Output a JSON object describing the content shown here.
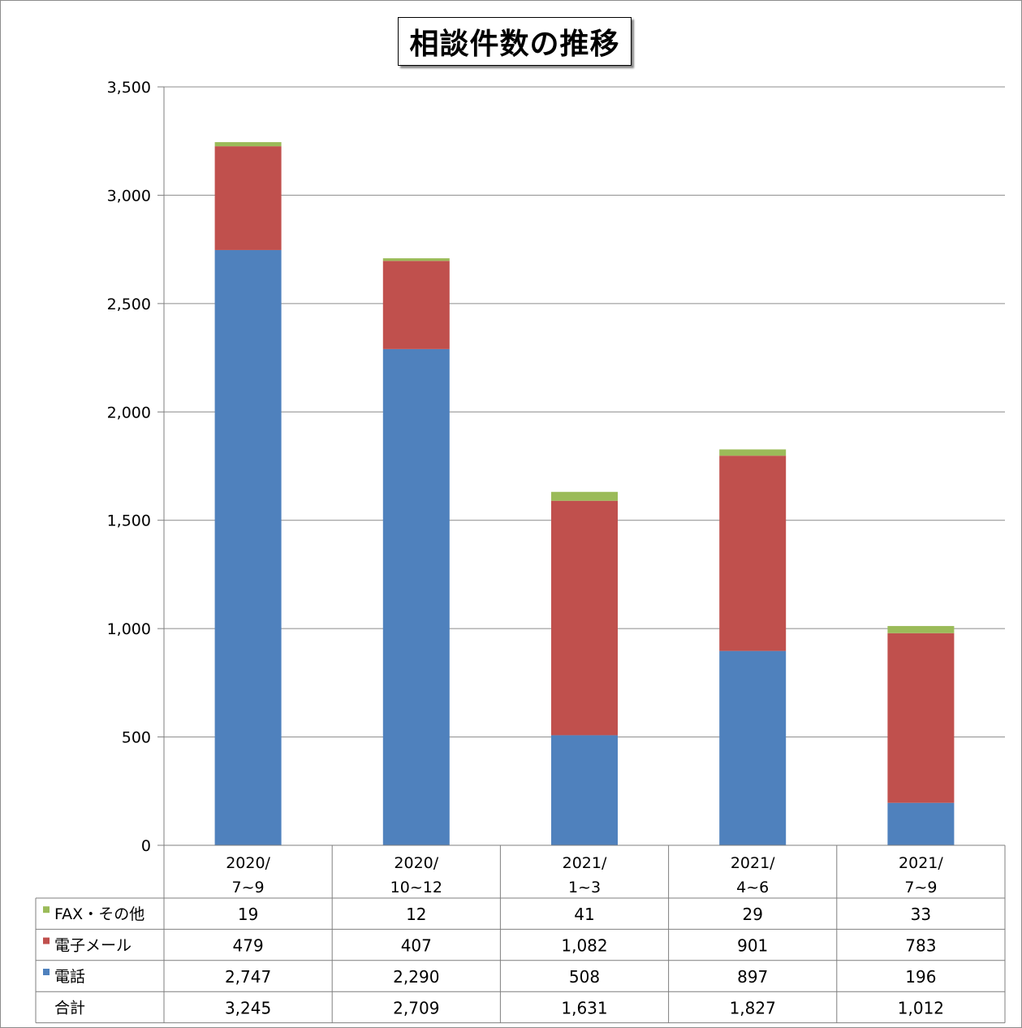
{
  "chart_data": {
    "type": "bar",
    "stacked": true,
    "title": "相談件数の推移",
    "categories": [
      [
        "2020/",
        "7~9"
      ],
      [
        "2020/",
        "10~12"
      ],
      [
        "2021/",
        "1~3"
      ],
      [
        "2021/",
        "4~6"
      ],
      [
        "2021/",
        "7~9"
      ]
    ],
    "series": [
      {
        "name": "電話",
        "color": "#4f81bd",
        "values": [
          2747,
          2290,
          508,
          897,
          196
        ]
      },
      {
        "name": "電子メール",
        "color": "#c0504d",
        "values": [
          479,
          407,
          1082,
          901,
          783
        ]
      },
      {
        "name": "FAX・その他",
        "color": "#9bbb59",
        "values": [
          19,
          12,
          41,
          29,
          33
        ]
      }
    ],
    "ylim": [
      0,
      3500
    ],
    "yticks": [
      "0",
      "500",
      "1,000",
      "1,500",
      "2,000",
      "2,500",
      "3,000",
      "3,500"
    ],
    "grid": true,
    "data_table": {
      "rows": [
        {
          "label": "FAX・その他",
          "color": "#9bbb59",
          "values": [
            "19",
            "12",
            "41",
            "29",
            "33"
          ]
        },
        {
          "label": "電子メール",
          "color": "#c0504d",
          "values": [
            "479",
            "407",
            "1,082",
            "901",
            "783"
          ]
        },
        {
          "label": "電話",
          "color": "#4f81bd",
          "values": [
            "2,747",
            "2,290",
            "508",
            "897",
            "196"
          ]
        },
        {
          "label": "合計",
          "color": "",
          "values": [
            "3,245",
            "2,709",
            "1,631",
            "1,827",
            "1,012"
          ]
        }
      ]
    }
  }
}
